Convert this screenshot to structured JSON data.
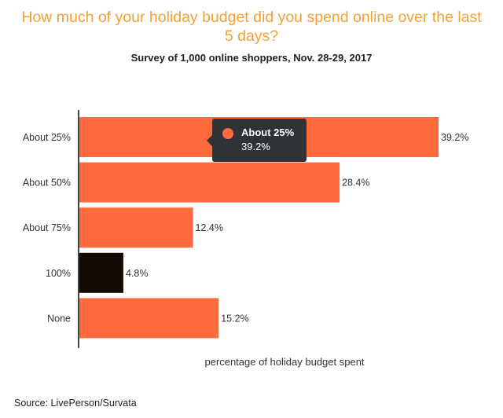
{
  "header": {
    "title": "How much of your holiday budget did you spend online over the last 5 days?",
    "subtitle": "Survey of 1,000 online shoppers, Nov. 28-29, 2017"
  },
  "footer": {
    "source": "Source: LivePerson/Survata"
  },
  "tooltip": {
    "label": "About 25%",
    "value": "39.2%"
  },
  "colors": {
    "bar": "#ff6b3d",
    "highlight_bar": "#140a04",
    "title": "#f5a032",
    "tooltip_bg": "#2f3236"
  },
  "chart_data": {
    "type": "bar",
    "orientation": "horizontal",
    "categories": [
      "About 25%",
      "About 50%",
      "About 75%",
      "100%",
      "None"
    ],
    "values": [
      39.2,
      28.4,
      12.4,
      4.8,
      15.2
    ],
    "value_labels": [
      "39.2%",
      "28.4%",
      "12.4%",
      "4.8%",
      "15.2%"
    ],
    "highlighted_category": "100%",
    "xlabel": "percentage of holiday budget spent",
    "xlim": [
      0,
      40
    ],
    "grid": false,
    "legend": "none"
  }
}
